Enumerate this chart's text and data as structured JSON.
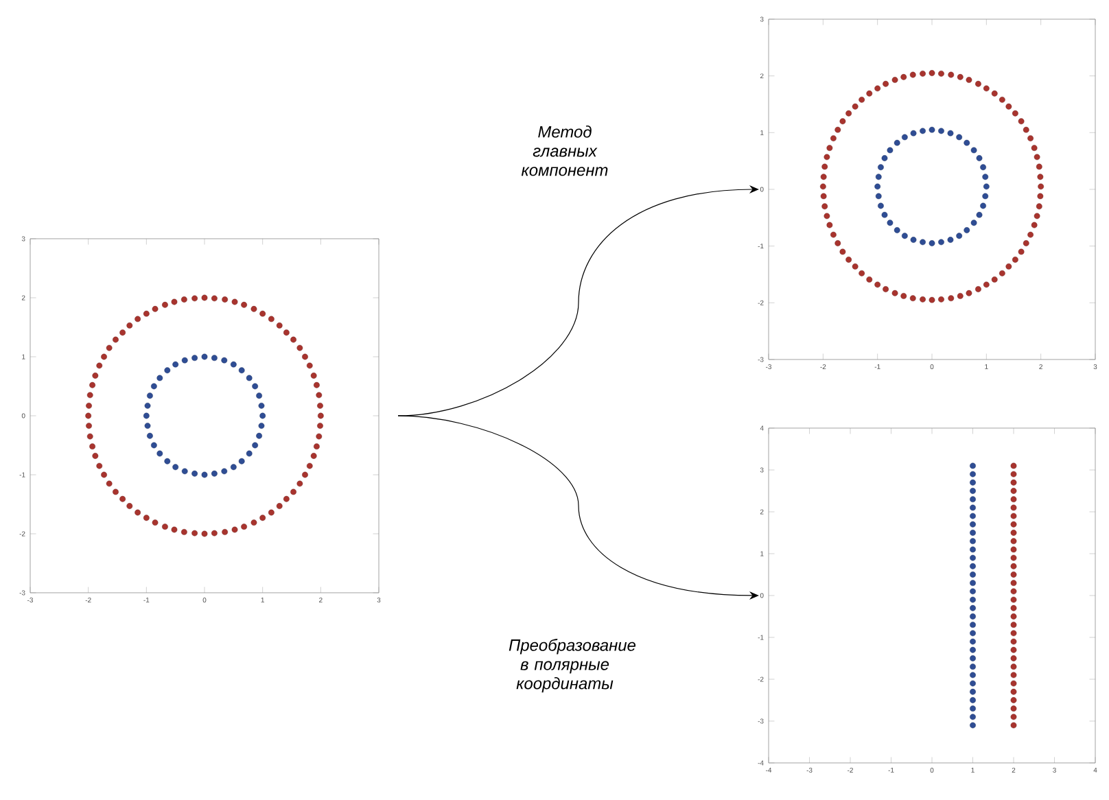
{
  "chart_data": [
    {
      "type": "scatter",
      "xlim": [
        -3,
        3
      ],
      "ylim": [
        -3,
        3
      ],
      "xticks": [
        -3,
        -2,
        -1,
        0,
        1,
        2,
        3
      ],
      "yticks": [
        -3,
        -2,
        -1,
        0,
        1,
        2,
        3
      ],
      "series": [
        {
          "color": "#a8342e",
          "x": [
            2,
            1.99,
            1.97,
            1.93,
            1.88,
            1.81,
            1.73,
            1.64,
            1.53,
            1.41,
            1.29,
            1.15,
            1,
            0.85,
            0.68,
            0.52,
            0.35,
            0.17,
            0,
            -0.17,
            -0.35,
            -0.52,
            -0.68,
            -0.85,
            -1,
            -1.15,
            -1.29,
            -1.41,
            -1.53,
            -1.64,
            -1.73,
            -1.81,
            -1.88,
            -1.93,
            -1.97,
            -1.99,
            -2,
            -1.99,
            -1.97,
            -1.93,
            -1.88,
            -1.81,
            -1.73,
            -1.64,
            -1.53,
            -1.41,
            -1.29,
            -1.15,
            -1,
            -0.85,
            -0.68,
            -0.52,
            -0.35,
            -0.17,
            0,
            0.17,
            0.35,
            0.52,
            0.68,
            0.85,
            1,
            1.15,
            1.29,
            1.41,
            1.53,
            1.64,
            1.73,
            1.81,
            1.88,
            1.93,
            1.97,
            1.99
          ],
          "values": [
            0,
            0.17,
            0.35,
            0.52,
            0.68,
            0.85,
            1,
            1.15,
            1.29,
            1.41,
            1.53,
            1.64,
            1.73,
            1.81,
            1.88,
            1.93,
            1.97,
            1.99,
            2,
            1.99,
            1.97,
            1.93,
            1.88,
            1.81,
            1.73,
            1.64,
            1.53,
            1.41,
            1.29,
            1.15,
            1,
            0.85,
            0.68,
            0.52,
            0.35,
            0.17,
            0,
            -0.17,
            -0.35,
            -0.52,
            -0.68,
            -0.85,
            -1,
            -1.15,
            -1.29,
            -1.41,
            -1.53,
            -1.64,
            -1.73,
            -1.81,
            -1.88,
            -1.93,
            -1.97,
            -1.99,
            -2,
            -1.99,
            -1.97,
            -1.93,
            -1.88,
            -1.81,
            -1.73,
            -1.64,
            -1.53,
            -1.41,
            -1.29,
            -1.15,
            -1,
            -0.85,
            -0.68,
            -0.52,
            -0.35,
            -0.17
          ]
        },
        {
          "color": "#2f4d94",
          "x": [
            1,
            0.98,
            0.94,
            0.87,
            0.77,
            0.64,
            0.5,
            0.34,
            0.17,
            0,
            -0.17,
            -0.34,
            -0.5,
            -0.64,
            -0.77,
            -0.87,
            -0.94,
            -0.98,
            -1,
            -0.98,
            -0.94,
            -0.87,
            -0.77,
            -0.64,
            -0.5,
            -0.34,
            -0.17,
            0,
            0.17,
            0.34,
            0.5,
            0.64,
            0.77,
            0.87,
            0.94,
            0.98
          ],
          "values": [
            0,
            0.17,
            0.34,
            0.5,
            0.64,
            0.77,
            0.87,
            0.94,
            0.98,
            1,
            0.98,
            0.94,
            0.87,
            0.77,
            0.64,
            0.5,
            0.34,
            0.17,
            0,
            -0.17,
            -0.34,
            -0.5,
            -0.64,
            -0.77,
            -0.87,
            -0.94,
            -0.98,
            -1,
            -0.98,
            -0.94,
            -0.87,
            -0.77,
            -0.64,
            -0.5,
            -0.34,
            -0.17
          ]
        }
      ]
    },
    {
      "type": "scatter",
      "xlim": [
        -3,
        3
      ],
      "ylim": [
        -3,
        3
      ],
      "xticks": [
        -3,
        -2,
        -1,
        0,
        1,
        2,
        3
      ],
      "yticks": [
        -3,
        -2,
        -1,
        0,
        1,
        2,
        3
      ],
      "annotations": [
        "Метод главных компонент"
      ],
      "series": [
        {
          "color": "#a8342e",
          "x": [
            2,
            1.99,
            1.97,
            1.93,
            1.88,
            1.81,
            1.73,
            1.64,
            1.53,
            1.41,
            1.29,
            1.15,
            1,
            0.85,
            0.68,
            0.52,
            0.35,
            0.17,
            0,
            -0.17,
            -0.35,
            -0.52,
            -0.68,
            -0.85,
            -1,
            -1.15,
            -1.29,
            -1.41,
            -1.53,
            -1.64,
            -1.73,
            -1.81,
            -1.88,
            -1.93,
            -1.97,
            -1.99,
            -2,
            -1.99,
            -1.97,
            -1.93,
            -1.88,
            -1.81,
            -1.73,
            -1.64,
            -1.53,
            -1.41,
            -1.29,
            -1.15,
            -1,
            -0.85,
            -0.68,
            -0.52,
            -0.35,
            -0.17,
            0,
            0.17,
            0.35,
            0.52,
            0.68,
            0.85,
            1,
            1.15,
            1.29,
            1.41,
            1.53,
            1.64,
            1.73,
            1.81,
            1.88,
            1.93,
            1.97,
            1.99
          ],
          "values": [
            0.05,
            0.22,
            0.4,
            0.57,
            0.73,
            0.9,
            1.05,
            1.2,
            1.34,
            1.46,
            1.58,
            1.69,
            1.78,
            1.86,
            1.93,
            1.98,
            2.02,
            2.04,
            2.05,
            2.04,
            2.02,
            1.98,
            1.93,
            1.86,
            1.78,
            1.69,
            1.58,
            1.46,
            1.34,
            1.2,
            1.05,
            0.9,
            0.73,
            0.57,
            0.4,
            0.22,
            0.05,
            -0.12,
            -0.3,
            -0.47,
            -0.63,
            -0.8,
            -0.95,
            -1.1,
            -1.24,
            -1.36,
            -1.48,
            -1.59,
            -1.68,
            -1.76,
            -1.83,
            -1.88,
            -1.92,
            -1.94,
            -1.95,
            -1.94,
            -1.92,
            -1.88,
            -1.83,
            -1.76,
            -1.68,
            -1.59,
            -1.48,
            -1.36,
            -1.24,
            -1.1,
            -0.95,
            -0.8,
            -0.63,
            -0.47,
            -0.3,
            -0.12
          ]
        },
        {
          "color": "#2f4d94",
          "x": [
            1,
            0.98,
            0.94,
            0.87,
            0.77,
            0.64,
            0.5,
            0.34,
            0.17,
            0,
            -0.17,
            -0.34,
            -0.5,
            -0.64,
            -0.77,
            -0.87,
            -0.94,
            -0.98,
            -1,
            -0.98,
            -0.94,
            -0.87,
            -0.77,
            -0.64,
            -0.5,
            -0.34,
            -0.17,
            0,
            0.17,
            0.34,
            0.5,
            0.64,
            0.77,
            0.87,
            0.94,
            0.98
          ],
          "values": [
            0.05,
            0.22,
            0.39,
            0.55,
            0.69,
            0.82,
            0.92,
            0.99,
            1.03,
            1.05,
            1.03,
            0.99,
            0.92,
            0.82,
            0.69,
            0.55,
            0.39,
            0.22,
            0.05,
            -0.12,
            -0.29,
            -0.45,
            -0.59,
            -0.72,
            -0.82,
            -0.89,
            -0.93,
            -0.95,
            -0.93,
            -0.89,
            -0.82,
            -0.72,
            -0.59,
            -0.45,
            -0.29,
            -0.12
          ]
        }
      ]
    },
    {
      "type": "scatter",
      "xlim": [
        -4,
        4
      ],
      "ylim": [
        -4,
        4
      ],
      "xticks": [
        -4,
        -3,
        -2,
        -1,
        0,
        1,
        2,
        3,
        4
      ],
      "yticks": [
        -4,
        -3,
        -2,
        -1,
        0,
        1,
        2,
        3,
        4
      ],
      "annotations": [
        "Преобразование в полярные координаты"
      ],
      "series": [
        {
          "color": "#2f4d94",
          "x": [
            1,
            1,
            1,
            1,
            1,
            1,
            1,
            1,
            1,
            1,
            1,
            1,
            1,
            1,
            1,
            1,
            1,
            1,
            1,
            1,
            1,
            1,
            1,
            1,
            1,
            1,
            1,
            1,
            1,
            1,
            1,
            1
          ],
          "values": [
            -3.1,
            -2.9,
            -2.7,
            -2.5,
            -2.3,
            -2.1,
            -1.9,
            -1.7,
            -1.5,
            -1.3,
            -1.1,
            -0.9,
            -0.7,
            -0.5,
            -0.3,
            -0.1,
            0.1,
            0.3,
            0.5,
            0.7,
            0.9,
            1.1,
            1.3,
            1.5,
            1.7,
            1.9,
            2.1,
            2.3,
            2.5,
            2.7,
            2.9,
            3.1
          ]
        },
        {
          "color": "#a8342e",
          "x": [
            2,
            2,
            2,
            2,
            2,
            2,
            2,
            2,
            2,
            2,
            2,
            2,
            2,
            2,
            2,
            2,
            2,
            2,
            2,
            2,
            2,
            2,
            2,
            2,
            2,
            2,
            2,
            2,
            2,
            2,
            2,
            2
          ],
          "values": [
            -3.1,
            -2.9,
            -2.7,
            -2.5,
            -2.3,
            -2.1,
            -1.9,
            -1.7,
            -1.5,
            -1.3,
            -1.1,
            -0.9,
            -0.7,
            -0.5,
            -0.3,
            -0.1,
            0.1,
            0.3,
            0.5,
            0.7,
            0.9,
            1.1,
            1.3,
            1.5,
            1.7,
            1.9,
            2.1,
            2.3,
            2.5,
            2.7,
            2.9,
            3.1
          ]
        }
      ]
    }
  ]
}
